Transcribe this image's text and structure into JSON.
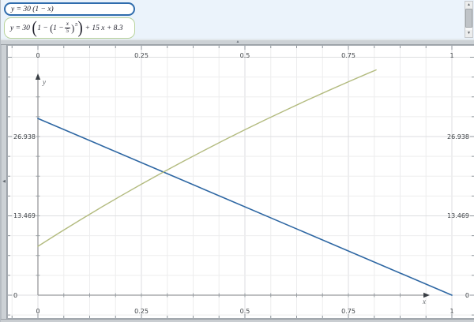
{
  "equation_panel": {
    "background": "#ebf3fb",
    "equations": [
      {
        "text": "y = 30 (1 − x)",
        "border_color": "#2f6cad",
        "selected": true
      },
      {
        "border_color": "#b9d39c",
        "selected": false,
        "parts": {
          "lead": "y = 30",
          "big_lparen": "(",
          "one_minus": "1 −",
          "inner_lparen": "(",
          "inner_one_minus": "1 −",
          "frac_num": "x",
          "frac_den": "5",
          "inner_rparen": ")",
          "exponent": "5",
          "big_rparen": ")",
          "tail": "+ 15 x + 8.3"
        }
      }
    ],
    "scrollbar": {
      "up_glyph": "▲",
      "down_glyph": "▼"
    }
  },
  "splitters": {
    "h_glyph": "▲",
    "v_glyph": "◀"
  },
  "chart_data": {
    "type": "line",
    "title": "",
    "x_axis_letter": "x",
    "y_axis_letter": "y",
    "x_tick_labels": [
      "0",
      "0.25",
      "0.5",
      "0.75",
      "1"
    ],
    "x_tick_values": [
      0,
      0.25,
      0.5,
      0.75,
      1
    ],
    "y_tick_labels": [
      "0",
      "13.469",
      "26.938"
    ],
    "y_tick_values": [
      0,
      13.469,
      26.938
    ],
    "x_minor_step": 0.0625,
    "y_minor_step": 3.36725,
    "x_range": [
      -0.07,
      1.055
    ],
    "y_range": [
      -4.0,
      42.3
    ],
    "grid": true,
    "legend": "none",
    "series": [
      {
        "name": "y = 30 (1 − x)",
        "color": "#2e67a3",
        "width": 1.6,
        "points": [
          [
            0,
            30
          ],
          [
            1,
            0
          ]
        ]
      },
      {
        "name": "y = 30 (1 − (1 − x/5)^5) + 15 x + 8.3",
        "color": "#b3bb7f",
        "width": 1.4,
        "points": [
          [
            0,
            8.3
          ],
          [
            0.05,
            10.52
          ],
          [
            0.1,
            12.68
          ],
          [
            0.15,
            14.79
          ],
          [
            0.2,
            16.84
          ],
          [
            0.25,
            18.84
          ],
          [
            0.3,
            20.78
          ],
          [
            0.35,
            22.68
          ],
          [
            0.4,
            24.53
          ],
          [
            0.45,
            26.33
          ],
          [
            0.5,
            28.09
          ],
          [
            0.55,
            29.8
          ],
          [
            0.6,
            31.47
          ],
          [
            0.65,
            33.1
          ],
          [
            0.7,
            34.69
          ],
          [
            0.75,
            36.24
          ],
          [
            0.8,
            37.75
          ],
          [
            0.817,
            38.25
          ]
        ]
      }
    ]
  }
}
